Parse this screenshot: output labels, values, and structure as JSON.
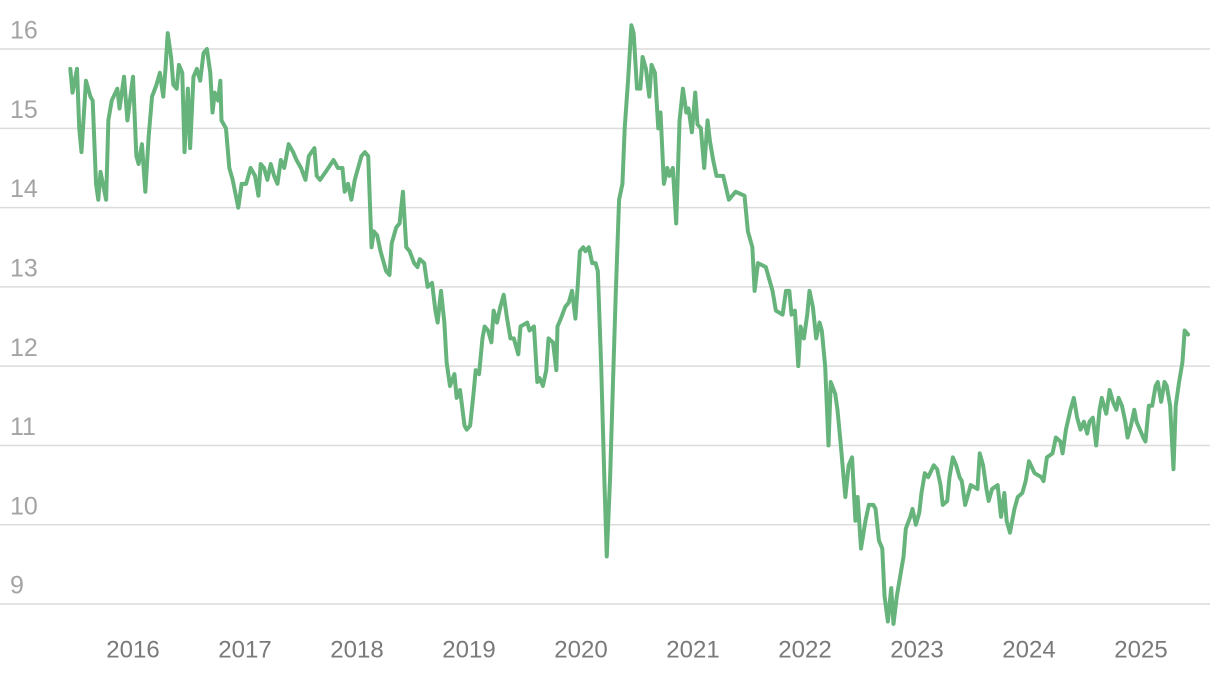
{
  "chart_data": {
    "type": "line",
    "x": [
      2015.44,
      2015.46,
      2015.5,
      2015.52,
      2015.54,
      2015.58,
      2015.62,
      2015.64,
      2015.67,
      2015.69,
      2015.71,
      2015.76,
      2015.78,
      2015.81,
      2015.86,
      2015.88,
      2015.92,
      2015.95,
      2016.0,
      2016.03,
      2016.05,
      2016.08,
      2016.11,
      2016.14,
      2016.17,
      2016.21,
      2016.24,
      2016.27,
      2016.29,
      2016.31,
      2016.34,
      2016.36,
      2016.39,
      2016.41,
      2016.44,
      2016.46,
      2016.49,
      2016.51,
      2016.54,
      2016.57,
      2016.6,
      2016.63,
      2016.66,
      2016.69,
      2016.71,
      2016.73,
      2016.76,
      2016.78,
      2016.79,
      2016.83,
      2016.86,
      2016.89,
      2016.94,
      2016.97,
      2017.01,
      2017.05,
      2017.09,
      2017.12,
      2017.14,
      2017.17,
      2017.2,
      2017.23,
      2017.26,
      2017.29,
      2017.32,
      2017.35,
      2017.39,
      2017.43,
      2017.46,
      2017.5,
      2017.54,
      2017.57,
      2017.62,
      2017.64,
      2017.67,
      2017.72,
      2017.79,
      2017.83,
      2017.87,
      2017.89,
      2017.92,
      2017.95,
      2017.98,
      2018.01,
      2018.04,
      2018.07,
      2018.1,
      2018.13,
      2018.15,
      2018.18,
      2018.21,
      2018.26,
      2018.29,
      2018.31,
      2018.35,
      2018.38,
      2018.41,
      2018.44,
      2018.47,
      2018.51,
      2018.54,
      2018.56,
      2018.6,
      2018.63,
      2018.67,
      2018.7,
      2018.72,
      2018.75,
      2018.78,
      2018.8,
      2018.83,
      2018.87,
      2018.89,
      2018.92,
      2018.96,
      2018.98,
      2019.01,
      2019.04,
      2019.06,
      2019.09,
      2019.12,
      2019.14,
      2019.17,
      2019.2,
      2019.22,
      2019.25,
      2019.28,
      2019.31,
      2019.34,
      2019.37,
      2019.4,
      2019.44,
      2019.46,
      2019.52,
      2019.54,
      2019.58,
      2019.61,
      2019.63,
      2019.66,
      2019.69,
      2019.71,
      2019.75,
      2019.78,
      2019.79,
      2019.82,
      2019.86,
      2019.89,
      2019.92,
      2019.95,
      2019.97,
      2019.99,
      2020.02,
      2020.04,
      2020.07,
      2020.1,
      2020.13,
      2020.15,
      2020.18,
      2020.21,
      2020.23,
      2020.26,
      2020.29,
      2020.31,
      2020.34,
      2020.37,
      2020.39,
      2020.42,
      2020.45,
      2020.47,
      2020.5,
      2020.53,
      2020.55,
      2020.58,
      2020.61,
      2020.63,
      2020.66,
      2020.69,
      2020.71,
      2020.74,
      2020.77,
      2020.79,
      2020.82,
      2020.85,
      2020.88,
      2020.91,
      2020.94,
      2020.96,
      2020.99,
      2021.02,
      2021.04,
      2021.07,
      2021.1,
      2021.13,
      2021.15,
      2021.18,
      2021.21,
      2021.27,
      2021.32,
      2021.38,
      2021.46,
      2021.49,
      2021.53,
      2021.55,
      2021.58,
      2021.65,
      2021.71,
      2021.74,
      2021.8,
      2021.83,
      2021.86,
      2021.88,
      2021.91,
      2021.94,
      2021.96,
      2021.99,
      2022.02,
      2022.04,
      2022.07,
      2022.1,
      2022.13,
      2022.15,
      2022.18,
      2022.21,
      2022.23,
      2022.27,
      2022.29,
      2022.32,
      2022.36,
      2022.39,
      2022.42,
      2022.45,
      2022.47,
      2022.5,
      2022.54,
      2022.57,
      2022.61,
      2022.63,
      2022.66,
      2022.69,
      2022.71,
      2022.74,
      2022.77,
      2022.79,
      2022.82,
      2022.85,
      2022.88,
      2022.9,
      2022.94,
      2022.96,
      2022.99,
      2023.02,
      2023.04,
      2023.07,
      2023.1,
      2023.15,
      2023.18,
      2023.21,
      2023.23,
      2023.27,
      2023.29,
      2023.32,
      2023.35,
      2023.38,
      2023.4,
      2023.43,
      2023.46,
      2023.48,
      2023.54,
      2023.56,
      2023.59,
      2023.62,
      2023.64,
      2023.67,
      2023.72,
      2023.75,
      2023.78,
      2023.8,
      2023.83,
      2023.87,
      2023.9,
      2023.94,
      2023.97,
      2024.0,
      2024.05,
      2024.11,
      2024.13,
      2024.16,
      2024.21,
      2024.24,
      2024.28,
      2024.3,
      2024.33,
      2024.37,
      2024.4,
      2024.43,
      2024.46,
      2024.49,
      2024.52,
      2024.54,
      2024.57,
      2024.6,
      2024.63,
      2024.65,
      2024.69,
      2024.72,
      2024.75,
      2024.78,
      2024.8,
      2024.83,
      2024.86,
      2024.88,
      2024.91,
      2024.94,
      2024.96,
      2024.99,
      2025.02,
      2025.04,
      2025.07,
      2025.1,
      2025.13,
      2025.15,
      2025.18,
      2025.21,
      2025.23,
      2025.26,
      2025.29,
      2025.31,
      2025.34,
      2025.37,
      2025.39,
      2025.42
    ],
    "series": [
      {
        "color": "#66b47b",
        "values": [
          15.75,
          15.45,
          15.75,
          15.0,
          14.7,
          15.6,
          15.4,
          15.35,
          14.3,
          14.1,
          14.45,
          14.1,
          15.1,
          15.35,
          15.5,
          15.25,
          15.65,
          15.1,
          15.65,
          14.65,
          14.55,
          14.8,
          14.2,
          14.9,
          15.4,
          15.55,
          15.7,
          15.4,
          15.75,
          16.2,
          15.9,
          15.55,
          15.5,
          15.8,
          15.7,
          14.7,
          15.5,
          14.75,
          15.65,
          15.75,
          15.6,
          15.95,
          16.0,
          15.7,
          15.2,
          15.45,
          15.35,
          15.6,
          15.1,
          15.0,
          14.5,
          14.35,
          14.0,
          14.3,
          14.3,
          14.5,
          14.4,
          14.15,
          14.55,
          14.5,
          14.35,
          14.55,
          14.4,
          14.3,
          14.6,
          14.5,
          14.8,
          14.7,
          14.6,
          14.5,
          14.35,
          14.65,
          14.75,
          14.4,
          14.35,
          14.45,
          14.6,
          14.5,
          14.5,
          14.2,
          14.3,
          14.1,
          14.35,
          14.5,
          14.65,
          14.7,
          14.65,
          13.5,
          13.7,
          13.65,
          13.45,
          13.2,
          13.15,
          13.55,
          13.75,
          13.8,
          14.2,
          13.5,
          13.45,
          13.3,
          13.25,
          13.35,
          13.3,
          13.0,
          13.05,
          12.7,
          12.55,
          12.95,
          12.55,
          12.05,
          11.75,
          11.9,
          11.6,
          11.7,
          11.25,
          11.2,
          11.25,
          11.65,
          11.95,
          11.9,
          12.35,
          12.5,
          12.45,
          12.3,
          12.7,
          12.55,
          12.75,
          12.9,
          12.6,
          12.35,
          12.35,
          12.15,
          12.5,
          12.55,
          12.45,
          12.5,
          11.8,
          11.85,
          11.75,
          11.95,
          12.35,
          12.3,
          11.95,
          12.5,
          12.6,
          12.75,
          12.8,
          12.95,
          12.6,
          13.0,
          13.45,
          13.5,
          13.45,
          13.5,
          13.3,
          13.3,
          13.2,
          12.0,
          10.5,
          9.6,
          10.6,
          12.0,
          12.9,
          14.1,
          14.3,
          15.0,
          15.6,
          16.3,
          16.2,
          15.5,
          15.5,
          15.9,
          15.75,
          15.4,
          15.8,
          15.7,
          15.0,
          15.2,
          14.3,
          14.5,
          14.4,
          14.5,
          13.8,
          15.1,
          15.5,
          15.2,
          15.25,
          14.95,
          15.45,
          15.05,
          15.0,
          14.5,
          15.1,
          14.85,
          14.6,
          14.4,
          14.4,
          14.1,
          14.2,
          14.15,
          13.7,
          13.5,
          12.95,
          13.3,
          13.25,
          12.95,
          12.7,
          12.65,
          12.95,
          12.95,
          12.65,
          12.7,
          12.0,
          12.5,
          12.35,
          12.65,
          12.95,
          12.75,
          12.35,
          12.55,
          12.45,
          12.0,
          11.0,
          11.8,
          11.65,
          11.45,
          11.0,
          10.35,
          10.75,
          10.85,
          10.05,
          10.35,
          9.7,
          10.05,
          10.25,
          10.25,
          10.2,
          9.8,
          9.7,
          9.1,
          8.78,
          9.2,
          8.75,
          9.1,
          9.35,
          9.6,
          9.95,
          10.1,
          10.2,
          10.0,
          10.15,
          10.4,
          10.65,
          10.6,
          10.75,
          10.7,
          10.5,
          10.25,
          10.3,
          10.6,
          10.85,
          10.75,
          10.6,
          10.55,
          10.25,
          10.4,
          10.5,
          10.45,
          10.9,
          10.75,
          10.45,
          10.3,
          10.45,
          10.5,
          10.1,
          10.4,
          10.05,
          9.9,
          10.2,
          10.35,
          10.4,
          10.55,
          10.8,
          10.65,
          10.6,
          10.55,
          10.85,
          10.9,
          11.1,
          11.05,
          10.9,
          11.2,
          11.45,
          11.6,
          11.35,
          11.2,
          11.3,
          11.15,
          11.3,
          11.35,
          11.0,
          11.45,
          11.6,
          11.4,
          11.7,
          11.55,
          11.45,
          11.6,
          11.5,
          11.3,
          11.1,
          11.25,
          11.45,
          11.3,
          11.2,
          11.1,
          11.05,
          11.5,
          11.5,
          11.75,
          11.8,
          11.55,
          11.8,
          11.75,
          11.5,
          10.7,
          11.5,
          11.8,
          12.05,
          12.45,
          12.4
        ]
      }
    ],
    "xlim": [
      2015.3,
      2025.6
    ],
    "xticks": [
      2016,
      2017,
      2018,
      2019,
      2020,
      2021,
      2022,
      2023,
      2024,
      2025
    ],
    "ylim": [
      8.7,
      16.5
    ],
    "yticks": [
      9,
      10,
      11,
      12,
      13,
      14,
      15,
      16
    ],
    "grid": true
  }
}
